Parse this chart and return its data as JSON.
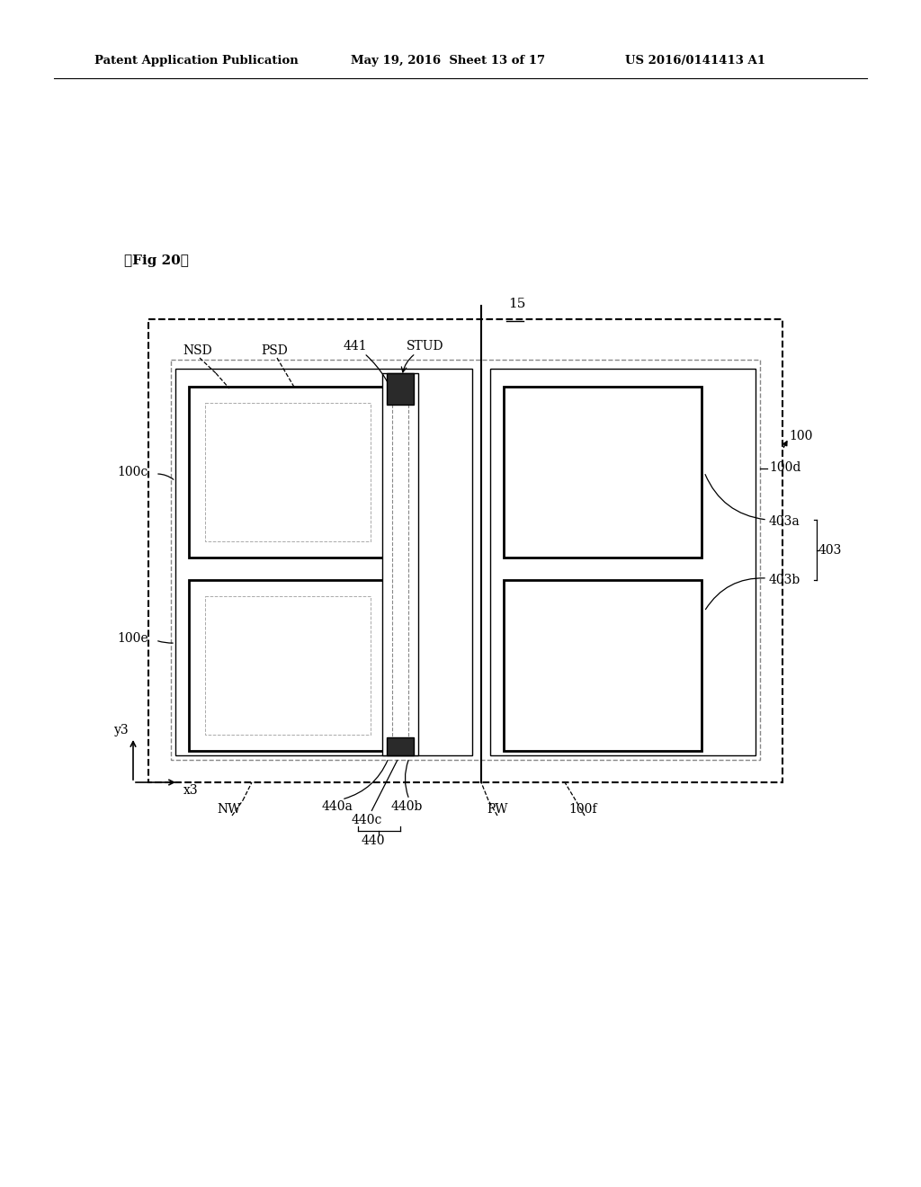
{
  "bg_color": "#ffffff",
  "header_left": "Patent Application Publication",
  "header_mid": "May 19, 2016  Sheet 13 of 17",
  "header_right": "US 2016/0141413 A1",
  "fig_label": "【Fig 20】",
  "lc": "#000000",
  "dc": "#aaaaaa",
  "dc2": "#888888"
}
